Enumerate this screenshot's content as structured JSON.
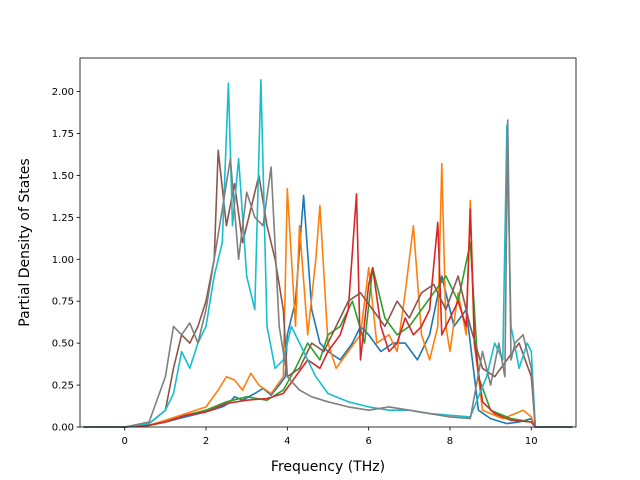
{
  "chart_data": {
    "type": "line",
    "title": "",
    "xlabel": "Frequency (THz)",
    "ylabel": "Partial Density of States",
    "xlim": [
      -1.1,
      11.1
    ],
    "ylim": [
      0,
      2.2
    ],
    "x_ticks": [
      0,
      2,
      4,
      6,
      8,
      10
    ],
    "x_tick_labels": [
      "0",
      "2",
      "4",
      "6",
      "8",
      "10"
    ],
    "y_ticks": [
      0,
      0.25,
      0.5,
      0.75,
      1.0,
      1.25,
      1.5,
      1.75,
      2.0
    ],
    "y_tick_labels": [
      "0.00",
      "0.25",
      "0.50",
      "0.75",
      "1.00",
      "1.25",
      "1.50",
      "1.75",
      "2.00"
    ],
    "grid": false,
    "legend": "none",
    "series": [
      {
        "color": "#1f77b4",
        "x": [
          -1.0,
          0.0,
          0.6,
          1.0,
          1.5,
          2.0,
          2.4,
          2.55,
          2.7,
          2.9,
          3.2,
          3.4,
          3.6,
          3.8,
          3.95,
          4.0,
          4.2,
          4.4,
          4.6,
          4.8,
          5.0,
          5.3,
          5.6,
          5.8,
          6.0,
          6.3,
          6.6,
          6.9,
          7.2,
          7.5,
          7.8,
          8.1,
          8.4,
          8.5,
          8.7,
          9.0,
          9.4,
          9.7,
          10.0,
          10.1,
          11.0
        ],
        "y": [
          0,
          0,
          0.01,
          0.03,
          0.06,
          0.09,
          0.12,
          0.14,
          0.18,
          0.16,
          0.2,
          0.23,
          0.19,
          0.25,
          0.3,
          0.55,
          0.75,
          1.38,
          0.7,
          0.5,
          0.45,
          0.4,
          0.5,
          0.6,
          0.55,
          0.45,
          0.5,
          0.5,
          0.4,
          0.55,
          0.9,
          0.6,
          0.7,
          0.5,
          0.1,
          0.05,
          0.02,
          0.03,
          0.05,
          0,
          0
        ]
      },
      {
        "color": "#ff7f0e",
        "x": [
          -1.0,
          0.0,
          0.6,
          1.0,
          1.5,
          2.0,
          2.3,
          2.5,
          2.7,
          2.9,
          3.1,
          3.3,
          3.6,
          3.9,
          4.0,
          4.2,
          4.3,
          4.5,
          4.7,
          4.8,
          5.0,
          5.2,
          5.5,
          5.8,
          6.0,
          6.2,
          6.5,
          6.7,
          6.9,
          7.1,
          7.3,
          7.5,
          7.7,
          7.8,
          7.9,
          8.0,
          8.2,
          8.4,
          8.5,
          8.6,
          8.8,
          9.0,
          9.3,
          9.6,
          9.8,
          10.0,
          10.1,
          11.0
        ],
        "y": [
          0,
          0,
          0.01,
          0.04,
          0.08,
          0.12,
          0.22,
          0.3,
          0.28,
          0.22,
          0.32,
          0.25,
          0.2,
          0.3,
          1.42,
          0.6,
          1.2,
          0.55,
          1.0,
          1.32,
          0.5,
          0.35,
          0.45,
          0.55,
          0.95,
          0.5,
          0.55,
          0.45,
          0.8,
          1.2,
          0.55,
          0.4,
          0.6,
          1.57,
          0.6,
          0.45,
          0.8,
          0.55,
          1.35,
          0.5,
          0.1,
          0.08,
          0.05,
          0.08,
          0.1,
          0.06,
          0,
          0
        ]
      },
      {
        "color": "#2ca02c",
        "x": [
          -1.0,
          0.0,
          0.6,
          1.0,
          1.5,
          2.0,
          2.5,
          3.0,
          3.5,
          3.9,
          4.2,
          4.5,
          4.8,
          5.0,
          5.3,
          5.6,
          5.9,
          6.1,
          6.4,
          6.7,
          7.0,
          7.3,
          7.6,
          7.9,
          8.2,
          8.5,
          8.7,
          9.0,
          9.5,
          10.0,
          10.1,
          11.0
        ],
        "y": [
          0,
          0,
          0.01,
          0.03,
          0.07,
          0.1,
          0.15,
          0.18,
          0.16,
          0.22,
          0.35,
          0.5,
          0.4,
          0.55,
          0.6,
          0.75,
          0.5,
          0.95,
          0.65,
          0.55,
          0.6,
          0.7,
          0.8,
          0.9,
          0.75,
          1.1,
          0.3,
          0.1,
          0.05,
          0.03,
          0,
          0
        ]
      },
      {
        "color": "#d62728",
        "x": [
          -1.0,
          0.0,
          0.6,
          1.0,
          1.5,
          2.0,
          2.5,
          3.0,
          3.5,
          3.9,
          4.2,
          4.5,
          4.8,
          5.0,
          5.3,
          5.5,
          5.7,
          5.8,
          6.0,
          6.1,
          6.3,
          6.5,
          6.7,
          6.9,
          7.1,
          7.3,
          7.5,
          7.7,
          7.8,
          8.0,
          8.2,
          8.4,
          8.5,
          8.6,
          8.8,
          9.1,
          9.5,
          10.0,
          10.1,
          11.0
        ],
        "y": [
          0,
          0,
          0.01,
          0.03,
          0.07,
          0.09,
          0.14,
          0.16,
          0.17,
          0.2,
          0.3,
          0.4,
          0.35,
          0.45,
          0.55,
          0.7,
          1.39,
          0.4,
          0.85,
          0.95,
          0.6,
          0.45,
          0.5,
          0.65,
          0.55,
          0.6,
          0.7,
          1.22,
          0.55,
          0.65,
          0.75,
          0.6,
          1.3,
          0.5,
          0.15,
          0.08,
          0.04,
          0.03,
          0,
          0
        ]
      },
      {
        "color": "#8c564b",
        "x": [
          -1.0,
          0.0,
          0.6,
          1.0,
          1.2,
          1.4,
          1.6,
          1.8,
          2.0,
          2.2,
          2.3,
          2.5,
          2.7,
          2.9,
          3.1,
          3.3,
          3.5,
          3.7,
          3.9,
          4.0,
          4.3,
          4.6,
          4.9,
          5.2,
          5.5,
          5.8,
          6.1,
          6.4,
          6.7,
          7.0,
          7.3,
          7.6,
          7.9,
          8.2,
          8.5,
          8.8,
          9.1,
          9.4,
          9.7,
          10.0,
          10.1,
          11.0
        ],
        "y": [
          0,
          0,
          0.02,
          0.1,
          0.35,
          0.55,
          0.5,
          0.6,
          0.75,
          1.0,
          1.65,
          1.2,
          1.45,
          1.1,
          1.3,
          1.5,
          1.2,
          1.0,
          0.7,
          0.3,
          0.35,
          0.5,
          0.45,
          0.6,
          0.75,
          0.8,
          0.7,
          0.6,
          0.75,
          0.65,
          0.8,
          0.85,
          0.7,
          0.9,
          0.6,
          0.35,
          0.3,
          0.4,
          0.5,
          0.3,
          0,
          0
        ]
      },
      {
        "color": "#17becf",
        "x": [
          -1.0,
          0.0,
          0.6,
          1.0,
          1.2,
          1.4,
          1.6,
          1.8,
          2.0,
          2.2,
          2.4,
          2.55,
          2.65,
          2.8,
          3.0,
          3.2,
          3.35,
          3.5,
          3.7,
          3.9,
          4.1,
          4.4,
          4.7,
          5.0,
          5.5,
          6.0,
          6.5,
          7.0,
          7.5,
          8.0,
          8.5,
          8.9,
          9.1,
          9.3,
          9.4,
          9.5,
          9.7,
          9.9,
          10.0,
          10.1,
          11.0
        ],
        "y": [
          0,
          0,
          0.02,
          0.1,
          0.2,
          0.45,
          0.35,
          0.5,
          0.6,
          0.9,
          1.1,
          2.05,
          1.2,
          1.6,
          0.9,
          0.7,
          2.07,
          0.6,
          0.35,
          0.4,
          0.6,
          0.45,
          0.3,
          0.2,
          0.15,
          0.12,
          0.1,
          0.1,
          0.08,
          0.07,
          0.06,
          0.3,
          0.5,
          0.4,
          1.8,
          0.6,
          0.35,
          0.5,
          0.45,
          0,
          0
        ]
      },
      {
        "color": "#7f7f7f",
        "x": [
          -1.0,
          0.0,
          0.6,
          1.0,
          1.2,
          1.4,
          1.6,
          1.8,
          2.0,
          2.2,
          2.4,
          2.6,
          2.8,
          3.0,
          3.2,
          3.4,
          3.6,
          3.8,
          4.0,
          4.3,
          4.6,
          5.0,
          5.5,
          6.0,
          6.5,
          7.0,
          7.5,
          8.0,
          8.5,
          8.8,
          9.0,
          9.2,
          9.35,
          9.42,
          9.5,
          9.6,
          9.8,
          10.0,
          10.1,
          11.0
        ],
        "y": [
          0,
          0,
          0.03,
          0.3,
          0.6,
          0.55,
          0.62,
          0.5,
          0.7,
          1.0,
          1.3,
          1.6,
          1.0,
          1.4,
          1.25,
          1.2,
          1.55,
          0.6,
          0.3,
          0.22,
          0.18,
          0.15,
          0.12,
          0.1,
          0.12,
          0.1,
          0.08,
          0.06,
          0.05,
          0.45,
          0.25,
          0.5,
          0.3,
          1.83,
          0.4,
          0.5,
          0.55,
          0.35,
          0,
          0
        ]
      }
    ]
  }
}
